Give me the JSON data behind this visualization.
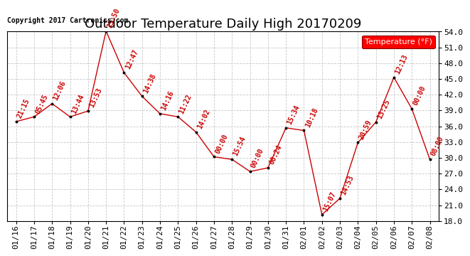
{
  "title": "Outdoor Temperature Daily High 20170209",
  "copyright": "Copyright 2017 Cartronics.com",
  "legend_label": "Temperature (°F)",
  "dates": [
    "01/16",
    "01/17",
    "01/18",
    "01/19",
    "01/20",
    "01/21",
    "01/22",
    "01/23",
    "01/24",
    "01/25",
    "01/26",
    "01/27",
    "01/28",
    "01/29",
    "01/30",
    "01/31",
    "02/01",
    "02/02",
    "02/03",
    "02/04",
    "02/05",
    "02/06",
    "02/07",
    "02/08"
  ],
  "temps": [
    36.9,
    37.8,
    40.3,
    37.8,
    38.9,
    54.1,
    46.2,
    41.7,
    38.4,
    37.8,
    34.9,
    30.2,
    29.7,
    27.4,
    28.1,
    35.7,
    35.2,
    19.2,
    22.3,
    32.9,
    36.8,
    45.3,
    39.3,
    29.7
  ],
  "times": [
    "21:15",
    "05:45",
    "12:06",
    "13:44",
    "13:53",
    "15:50",
    "12:47",
    "14:38",
    "14:16",
    "11:22",
    "14:02",
    "00:00",
    "15:54",
    "00:00",
    "00:24",
    "15:34",
    "10:18",
    "15:07",
    "14:53",
    "20:59",
    "13:25",
    "12:13",
    "00:00",
    "08:00"
  ],
  "line_color": "#cc0000",
  "dot_color": "#000000",
  "time_color": "#cc0000",
  "bg_color": "#ffffff",
  "grid_color": "#c8c8c8",
  "ylim": [
    18.0,
    54.0
  ],
  "yticks": [
    18.0,
    21.0,
    24.0,
    27.0,
    30.0,
    33.0,
    36.0,
    39.0,
    42.0,
    45.0,
    48.0,
    51.0,
    54.0
  ],
  "title_fontsize": 13,
  "copyright_fontsize": 7,
  "legend_fontsize": 8,
  "tick_fontsize": 8,
  "time_label_fontsize": 7
}
